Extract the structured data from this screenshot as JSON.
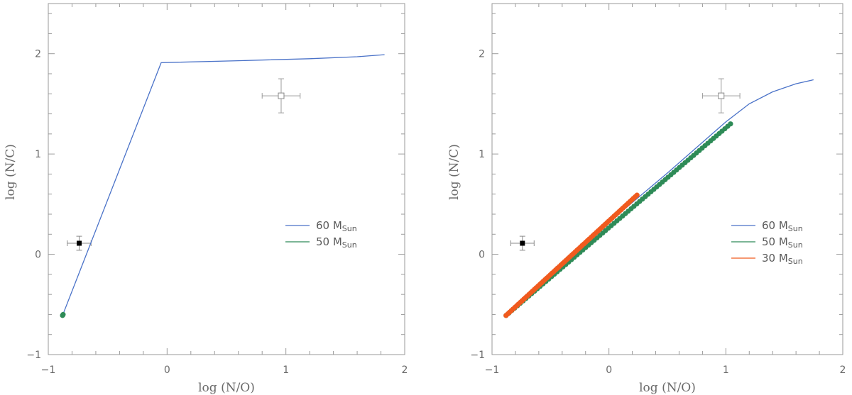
{
  "chart_data": [
    {
      "type": "line",
      "panel": "left",
      "xlabel": "log (N/O)",
      "ylabel": "log (N/C)",
      "xlim": [
        -1,
        2
      ],
      "ylim": [
        -1,
        2.5
      ],
      "xticks": [
        "−1",
        "0",
        "1",
        "2"
      ],
      "yticks": [
        "−1",
        "0",
        "1",
        "2"
      ],
      "grid": false,
      "legend_position": "right-middle",
      "series": [
        {
          "name": "60",
          "name_sub": "Sun",
          "name_prefix": "M",
          "style": "line",
          "color": "#4a72c8",
          "points": [
            [
              -0.88,
              -0.61
            ],
            [
              -0.05,
              1.91
            ],
            [
              0.6,
              1.93
            ],
            [
              1.2,
              1.95
            ],
            [
              1.6,
              1.97
            ],
            [
              1.83,
              1.99
            ]
          ]
        },
        {
          "name": "50",
          "name_sub": "Sun",
          "name_prefix": "M",
          "style": "dots",
          "color": "#2e8b57",
          "points": [
            [
              -0.88,
              -0.61
            ],
            [
              -0.875,
              -0.6
            ]
          ]
        }
      ],
      "observations": [
        {
          "x": -0.74,
          "y": 0.11,
          "xerr": 0.1,
          "yerr": 0.07,
          "marker": "filled-square",
          "color": "#000000"
        },
        {
          "x": 0.96,
          "y": 1.58,
          "xerr": 0.16,
          "yerr": 0.17,
          "marker": "open-square",
          "color": "#888888"
        }
      ]
    },
    {
      "type": "line",
      "panel": "right",
      "xlabel": "log (N/O)",
      "ylabel": "log (N/C)",
      "xlim": [
        -1,
        2
      ],
      "ylim": [
        -1,
        2.5
      ],
      "xticks": [
        "−1",
        "0",
        "1",
        "2"
      ],
      "yticks": [
        "−1",
        "0",
        "1",
        "2"
      ],
      "grid": false,
      "legend_position": "right-middle",
      "series": [
        {
          "name": "60",
          "name_sub": "Sun",
          "name_prefix": "M",
          "style": "line",
          "color": "#4a72c8",
          "points": [
            [
              -0.88,
              -0.61
            ],
            [
              0.0,
              0.32
            ],
            [
              0.5,
              0.81
            ],
            [
              1.0,
              1.32
            ],
            [
              1.2,
              1.5
            ],
            [
              1.4,
              1.62
            ],
            [
              1.6,
              1.7
            ],
            [
              1.75,
              1.74
            ]
          ]
        },
        {
          "name": "50",
          "name_sub": "Sun",
          "name_prefix": "M",
          "style": "dots",
          "color": "#2e8b57",
          "points": [
            [
              -0.88,
              -0.61
            ],
            [
              1.04,
              1.3
            ]
          ],
          "count": 80
        },
        {
          "name": "30",
          "name_sub": "Sun",
          "name_prefix": "M",
          "style": "dots",
          "color": "#f05a1e",
          "points": [
            [
              -0.88,
              -0.61
            ],
            [
              0.24,
              0.59
            ]
          ],
          "count": 75
        }
      ],
      "observations": [
        {
          "x": -0.74,
          "y": 0.11,
          "xerr": 0.1,
          "yerr": 0.07,
          "marker": "filled-square",
          "color": "#000000"
        },
        {
          "x": 0.96,
          "y": 1.58,
          "xerr": 0.16,
          "yerr": 0.17,
          "marker": "open-square",
          "color": "#888888"
        }
      ]
    }
  ]
}
